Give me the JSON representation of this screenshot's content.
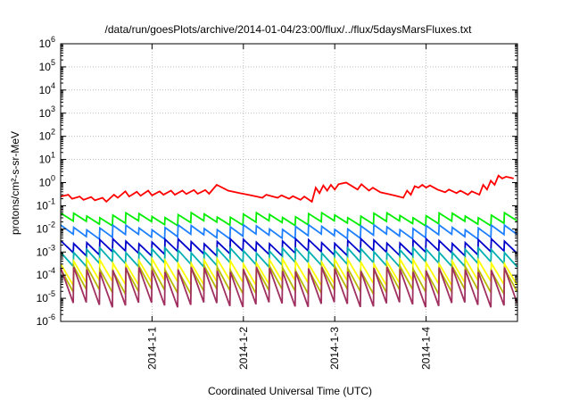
{
  "chart_data": {
    "type": "line",
    "title": "/data/run/goesPlots/archive/2014-01-04/23:00/flux/../flux/5daysMarsFluxes.txt",
    "xlabel": "Coordinated Universal Time (UTC)",
    "ylabel": "protons/cm²-s-sr-MeV",
    "y_scale": "log",
    "ylim": [
      1e-06,
      1000000.0
    ],
    "y_ticks": [
      {
        "exp": -6,
        "base": "10",
        "power": "-6"
      },
      {
        "exp": -5,
        "base": "10",
        "power": "-5"
      },
      {
        "exp": -4,
        "base": "10",
        "power": "-4"
      },
      {
        "exp": -3,
        "base": "10",
        "power": "-3"
      },
      {
        "exp": -2,
        "base": "10",
        "power": "-2"
      },
      {
        "exp": -1,
        "base": "10",
        "power": "-1"
      },
      {
        "exp": 0,
        "base": "10",
        "power": "0"
      },
      {
        "exp": 1,
        "base": "10",
        "power": "1"
      },
      {
        "exp": 2,
        "base": "10",
        "power": "2"
      },
      {
        "exp": 3,
        "base": "10",
        "power": "3"
      },
      {
        "exp": 4,
        "base": "10",
        "power": "4"
      },
      {
        "exp": 5,
        "base": "10",
        "power": "5"
      },
      {
        "exp": 6,
        "base": "10",
        "power": "6"
      }
    ],
    "xlim": [
      "2013-12-31T00:00",
      "2014-01-05T00:00"
    ],
    "x_ticks": [
      {
        "value": "2014-01-01T00:00",
        "label": "2014-1-1"
      },
      {
        "value": "2014-01-02T00:00",
        "label": "2014-1-2"
      },
      {
        "value": "2014-01-03T00:00",
        "label": "2014-1-3"
      },
      {
        "value": "2014-01-04T00:00",
        "label": "2014-1-4"
      }
    ],
    "grid": true,
    "legend": "none",
    "series": [
      {
        "color": "#ff0000",
        "points": [
          [
            "2013-12-31T00:00",
            0.25
          ],
          [
            "2013-12-31T02:00",
            0.3
          ],
          [
            "2013-12-31T03:00",
            0.2
          ],
          [
            "2013-12-31T05:00",
            0.25
          ],
          [
            "2013-12-31T06:00",
            0.18
          ],
          [
            "2013-12-31T08:00",
            0.24
          ],
          [
            "2013-12-31T09:00",
            0.17
          ],
          [
            "2013-12-31T11:00",
            0.22
          ],
          [
            "2013-12-31T12:00",
            0.15
          ],
          [
            "2013-12-31T14:00",
            0.3
          ],
          [
            "2013-12-31T15:00",
            0.22
          ],
          [
            "2013-12-31T17:00",
            0.42
          ],
          [
            "2013-12-31T18:00",
            0.25
          ],
          [
            "2013-12-31T20:00",
            0.4
          ],
          [
            "2013-12-31T21:00",
            0.27
          ],
          [
            "2013-12-31T23:00",
            0.45
          ],
          [
            "2014-01-01T00:00",
            0.28
          ],
          [
            "2014-01-01T02:00",
            0.42
          ],
          [
            "2014-01-01T03:00",
            0.3
          ],
          [
            "2014-01-01T05:00",
            0.45
          ],
          [
            "2014-01-01T06:00",
            0.3
          ],
          [
            "2014-01-01T08:00",
            0.45
          ],
          [
            "2014-01-01T09:00",
            0.32
          ],
          [
            "2014-01-01T11:00",
            0.48
          ],
          [
            "2014-01-01T12:00",
            0.33
          ],
          [
            "2014-01-01T14:00",
            0.48
          ],
          [
            "2014-01-01T15:00",
            0.33
          ],
          [
            "2014-01-01T17:00",
            0.8
          ],
          [
            "2014-01-01T20:00",
            0.45
          ],
          [
            "2014-01-01T23:00",
            0.35
          ],
          [
            "2014-01-02T02:00",
            0.28
          ],
          [
            "2014-01-02T05:00",
            0.22
          ],
          [
            "2014-01-02T06:00",
            0.3
          ],
          [
            "2014-01-02T09:00",
            0.22
          ],
          [
            "2014-01-02T10:00",
            0.28
          ],
          [
            "2014-01-02T12:00",
            0.2
          ],
          [
            "2014-01-02T13:00",
            0.26
          ],
          [
            "2014-01-02T15:00",
            0.18
          ],
          [
            "2014-01-02T16:00",
            0.25
          ],
          [
            "2014-01-02T18:00",
            0.15
          ],
          [
            "2014-01-02T19:00",
            0.6
          ],
          [
            "2014-01-02T20:00",
            0.35
          ],
          [
            "2014-01-02T21:00",
            0.75
          ],
          [
            "2014-01-02T22:00",
            0.45
          ],
          [
            "2014-01-02T23:00",
            0.8
          ],
          [
            "2014-01-03T00:00",
            0.5
          ],
          [
            "2014-01-03T01:00",
            0.85
          ],
          [
            "2014-01-03T03:00",
            1.0
          ],
          [
            "2014-01-03T06:00",
            0.5
          ],
          [
            "2014-01-03T07:00",
            0.85
          ],
          [
            "2014-01-03T09:00",
            0.45
          ],
          [
            "2014-01-03T10:00",
            0.6
          ],
          [
            "2014-01-03T12:00",
            0.38
          ],
          [
            "2014-01-03T14:00",
            0.32
          ],
          [
            "2014-01-03T16:00",
            0.27
          ],
          [
            "2014-01-03T18:00",
            0.22
          ],
          [
            "2014-01-03T19:00",
            0.45
          ],
          [
            "2014-01-03T20:00",
            0.3
          ],
          [
            "2014-01-03T21:00",
            0.7
          ],
          [
            "2014-01-03T22:00",
            0.6
          ],
          [
            "2014-01-03T23:00",
            0.8
          ],
          [
            "2014-01-04T00:00",
            0.6
          ],
          [
            "2014-01-04T01:00",
            0.75
          ],
          [
            "2014-01-04T03:00",
            0.5
          ],
          [
            "2014-01-04T05:00",
            0.38
          ],
          [
            "2014-01-04T06:00",
            0.5
          ],
          [
            "2014-01-04T08:00",
            0.35
          ],
          [
            "2014-01-04T09:00",
            0.45
          ],
          [
            "2014-01-04T11:00",
            0.3
          ],
          [
            "2014-01-04T12:00",
            0.42
          ],
          [
            "2014-01-04T14:00",
            0.3
          ],
          [
            "2014-01-04T15:00",
            0.8
          ],
          [
            "2014-01-04T16:00",
            0.5
          ],
          [
            "2014-01-04T17:00",
            1.2
          ],
          [
            "2014-01-04T18:00",
            0.8
          ],
          [
            "2014-01-04T19:00",
            2.0
          ],
          [
            "2014-01-04T20:00",
            1.5
          ],
          [
            "2014-01-04T21:00",
            1.8
          ],
          [
            "2014-01-04T23:00",
            1.5
          ]
        ]
      },
      {
        "color": "#00ee00",
        "base": 0.04,
        "depth": 0.45
      },
      {
        "color": "#1e7fff",
        "base": 0.012,
        "depth": 0.4
      },
      {
        "color": "#0000cc",
        "base": 0.003,
        "depth": 0.3
      },
      {
        "color": "#00b0b0",
        "base": 0.0012,
        "depth": 0.25
      },
      {
        "color": "#ffff00",
        "base": 0.0004,
        "depth": 0.12
      },
      {
        "color": "#b8b800",
        "base": 0.0002,
        "depth": 0.1
      },
      {
        "color": "#a03060",
        "base": 0.00018,
        "depth": 0.03
      }
    ],
    "sawtooth_count": 35
  }
}
